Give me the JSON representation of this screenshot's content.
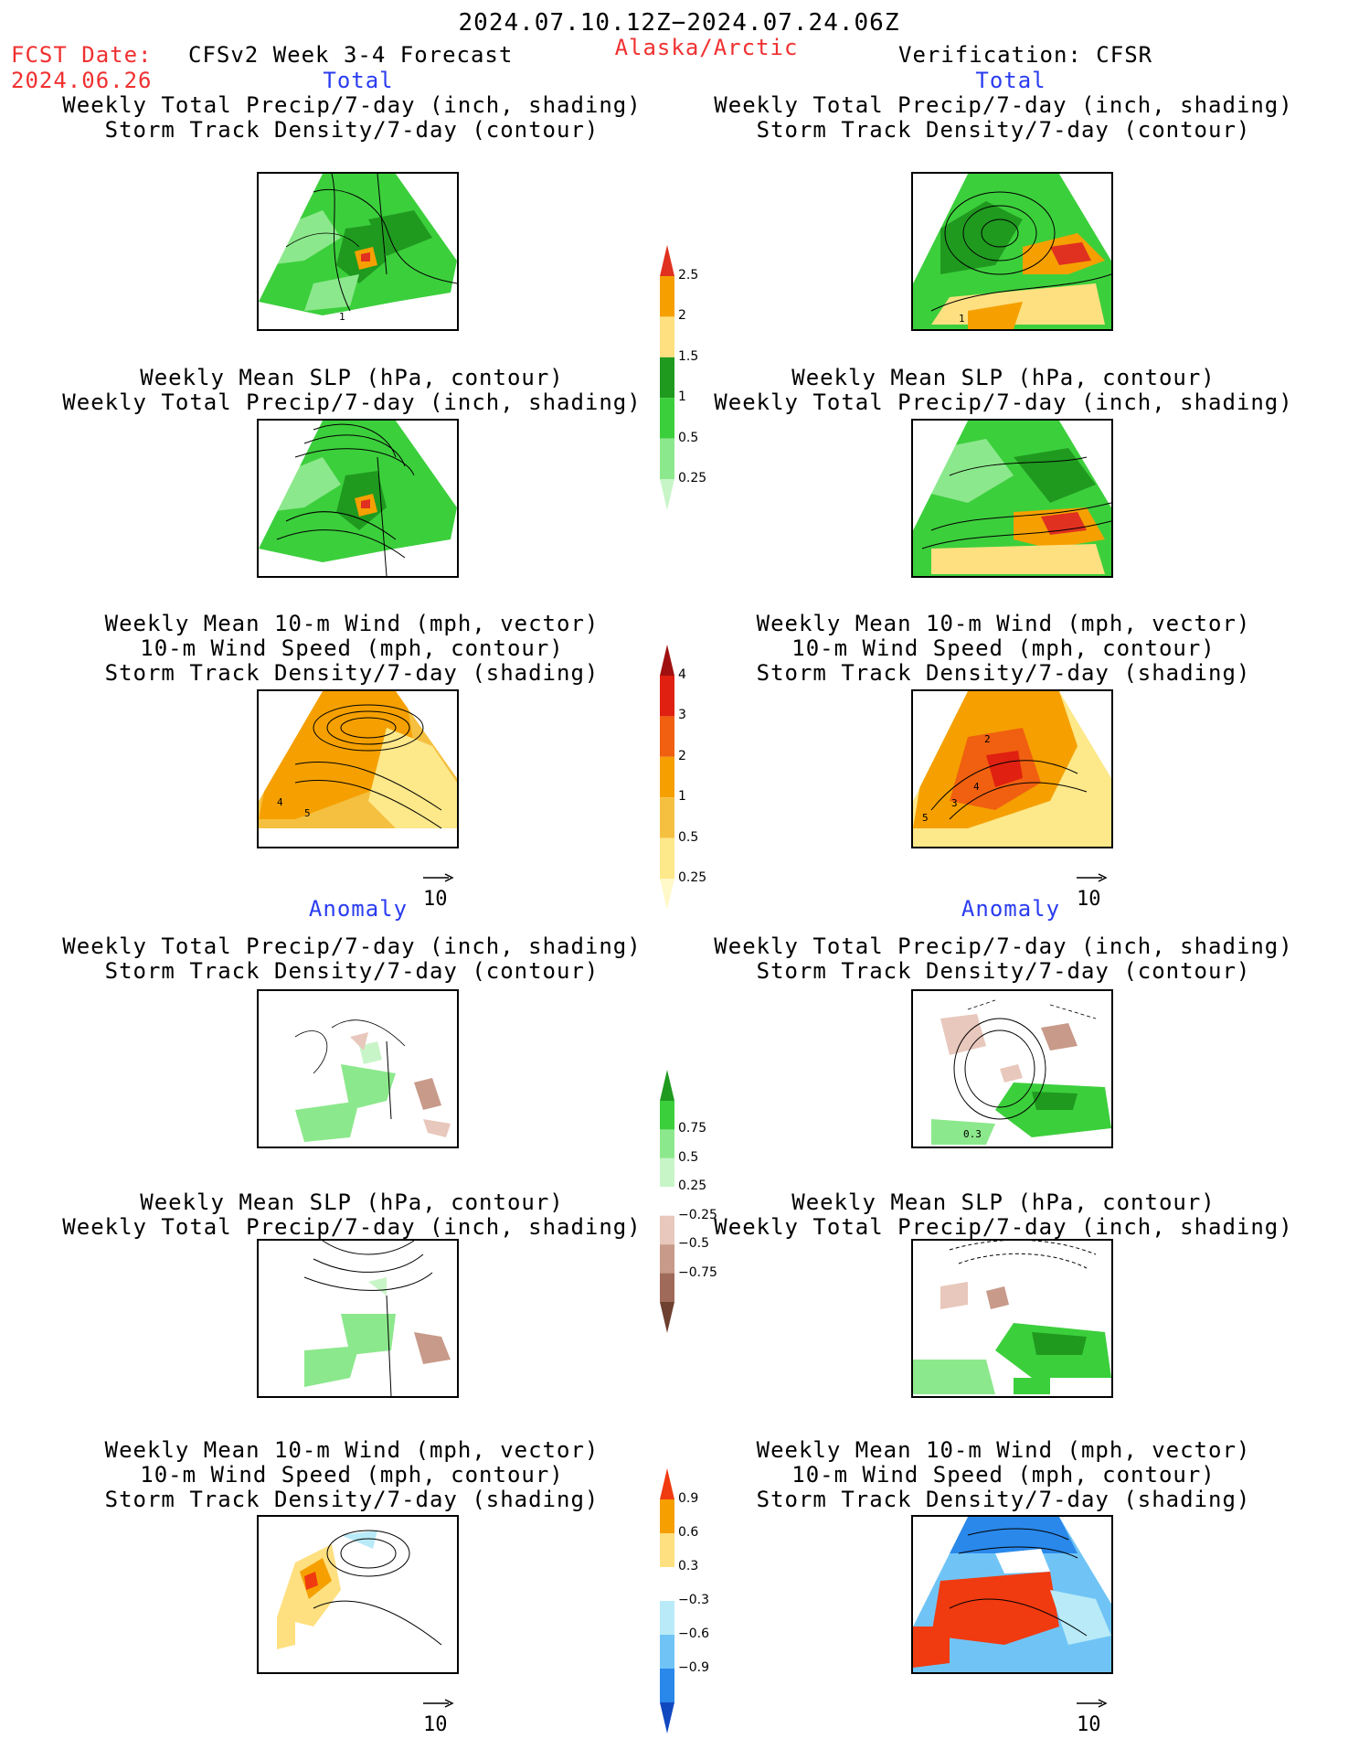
{
  "header": {
    "date_range": "2024.07.10.12Z−2024.07.24.06Z",
    "fcst_label": "FCST Date:",
    "fcst_date": "2024.06.26",
    "model": "CFSv2 Week 3-4 Forecast",
    "region": "Alaska/Arctic",
    "verification": "Verification: CFSR"
  },
  "sections": {
    "total_label": "Total",
    "anomaly_label": "Anomaly"
  },
  "panel_titles": {
    "precip_storm": "Weekly Total Precip/7-day (inch, shading)\nStorm Track Density/7-day (contour)",
    "slp_precip": "Weekly Mean SLP (hPa, contour)\nWeekly Total Precip/7-day (inch, shading)",
    "wind_storm": "Weekly Mean 10-m Wind (mph, vector)\n10-m Wind Speed (mph, contour)\nStorm Track Density/7-day (shading)"
  },
  "vector_ref": "10",
  "colorbars": {
    "precip_total": {
      "labels": [
        "2.5",
        "2",
        "1.5",
        "1",
        "0.5",
        "0.25"
      ],
      "colors": [
        "#e03020",
        "#f5a000",
        "#ffe080",
        "#1f9a1f",
        "#3ccf3c",
        "#8ce88c",
        "#c8f5c8"
      ]
    },
    "storm_total": {
      "labels": [
        "4",
        "3",
        "2",
        "1",
        "0.5",
        "0.25"
      ],
      "colors": [
        "#a01010",
        "#e02010",
        "#f06010",
        "#f5a000",
        "#f5c040",
        "#fde88a",
        "#fff8c8"
      ]
    },
    "precip_anom": {
      "labels": [
        "0.75",
        "0.5",
        "0.25",
        "−0.25",
        "−0.5",
        "−0.75"
      ],
      "colors": [
        "#1f9a1f",
        "#3ccf3c",
        "#8ce88c",
        "#c8f5c8",
        "#ffffff",
        "#e8c8bc",
        "#c89a8a",
        "#a06a5a",
        "#6e4030"
      ]
    },
    "storm_anom": {
      "labels": [
        "0.9",
        "0.6",
        "0.3",
        "−0.3",
        "−0.6",
        "−0.9"
      ],
      "colors": [
        "#f03a10",
        "#f5a000",
        "#ffe080",
        "#ffffff",
        "#b8eaf8",
        "#70c4f5",
        "#2a88ea",
        "#1048c0"
      ]
    }
  },
  "panel_annotations": {
    "precip_fc_total_contour": "1",
    "wind_fc_total_contours": [
      "4",
      "5"
    ],
    "wind_obs_total_contours": [
      "2",
      "3",
      "4",
      "5"
    ],
    "precip_obs_anom_contour": "0.3"
  }
}
